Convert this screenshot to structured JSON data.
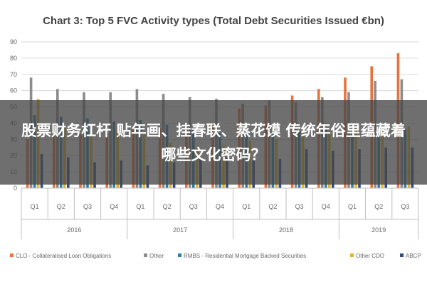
{
  "overlay": {
    "headline": "股票财务杠杆 贴年画、挂春联、蒸花馍 传统年俗里蕴藏着哪些文化密码？"
  },
  "chart_data": {
    "type": "bar",
    "title": "Chart 3: Top 5 FVC Activity types (Total Debt Securities Issued €bn)",
    "xlabel": "",
    "ylabel": "",
    "ylim": [
      0,
      90
    ],
    "yticks": [
      0,
      10,
      20,
      30,
      40,
      50,
      60,
      70,
      80,
      90
    ],
    "grid": true,
    "legend_position": "bottom",
    "categories": [
      "Q1",
      "Q2",
      "Q3",
      "Q4",
      "Q1",
      "Q2",
      "Q3",
      "Q4",
      "Q1",
      "Q2",
      "Q3",
      "Q4",
      "Q1",
      "Q2",
      "Q3"
    ],
    "groups": [
      {
        "label": "2016",
        "count": 4
      },
      {
        "label": "2017",
        "count": 4
      },
      {
        "label": "2018",
        "count": 4
      },
      {
        "label": "2019",
        "count": 3
      }
    ],
    "series": [
      {
        "name": "CLO - Collateralised Loan Obligations",
        "color": "#e8713c",
        "values": [
          30,
          32,
          33,
          34,
          36,
          37,
          38,
          40,
          49,
          51,
          57,
          61,
          68,
          75,
          83
        ]
      },
      {
        "name": "Other",
        "color": "#8c8c8c",
        "values": [
          68,
          61,
          59,
          59,
          61,
          58,
          56,
          55,
          52,
          54,
          53,
          56,
          59,
          66,
          67
        ]
      },
      {
        "name": "RMBS - Residential Mortgage Backed Securities",
        "color": "#2e7fa8",
        "values": [
          45,
          44,
          43,
          41,
          42,
          39,
          37,
          34,
          33,
          34,
          35,
          36,
          36,
          37,
          36
        ]
      },
      {
        "name": "Other CDO",
        "color": "#e8b422",
        "values": [
          55,
          38,
          32,
          37,
          33,
          28,
          25,
          26,
          29,
          30,
          34,
          35,
          37,
          38,
          38
        ]
      },
      {
        "name": "ABCP",
        "color": "#2d4a8a",
        "values": [
          21,
          19,
          16,
          17,
          14,
          16,
          18,
          19,
          17,
          18,
          24,
          23,
          24,
          25,
          25
        ]
      }
    ]
  }
}
